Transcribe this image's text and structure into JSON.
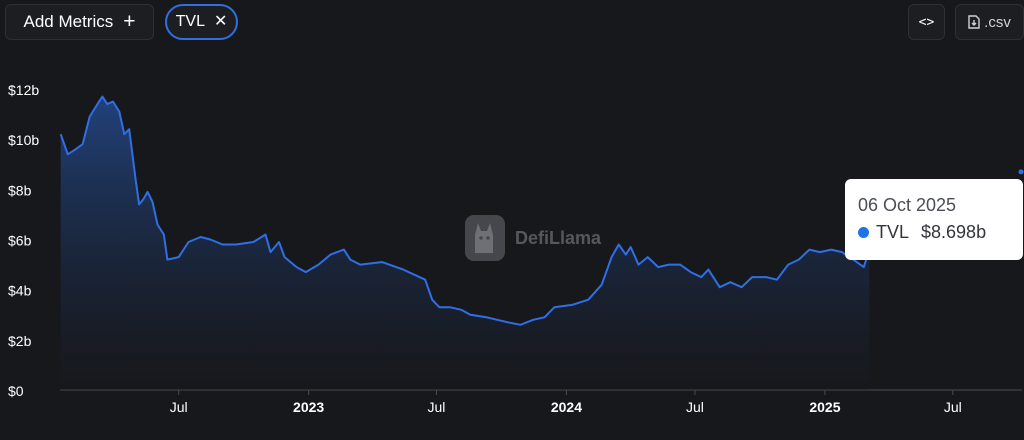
{
  "toolbar": {
    "add_metrics_label": "Add Metrics",
    "add_icon_glyph": "+",
    "metric_pill_label": "TVL",
    "remove_icon_glyph": "✕",
    "embed_icon_glyph": "<>",
    "csv_label": ".csv",
    "icons": [
      "plus-icon",
      "close-icon",
      "code-icon",
      "file-download-icon"
    ]
  },
  "watermark": {
    "text": "DefiLlama"
  },
  "tooltip": {
    "date": "06 Oct 2025",
    "series": "TVL",
    "value": "$8.698b",
    "dot_color": "#2172e5"
  },
  "chart_data": {
    "type": "area",
    "series": [
      {
        "name": "TVL",
        "color": "#2f6fe6",
        "points": [
          [
            "2022-01-15",
            10.2
          ],
          [
            "2022-01-25",
            9.4
          ],
          [
            "2022-02-05",
            9.6
          ],
          [
            "2022-02-15",
            9.8
          ],
          [
            "2022-02-25",
            10.9
          ],
          [
            "2022-03-08",
            11.4
          ],
          [
            "2022-03-15",
            11.7
          ],
          [
            "2022-03-22",
            11.4
          ],
          [
            "2022-03-30",
            11.5
          ],
          [
            "2022-04-08",
            11.1
          ],
          [
            "2022-04-15",
            10.2
          ],
          [
            "2022-04-22",
            10.4
          ],
          [
            "2022-05-01",
            8.4
          ],
          [
            "2022-05-06",
            7.4
          ],
          [
            "2022-05-12",
            7.6
          ],
          [
            "2022-05-18",
            7.9
          ],
          [
            "2022-05-25",
            7.5
          ],
          [
            "2022-06-01",
            6.6
          ],
          [
            "2022-06-10",
            6.2
          ],
          [
            "2022-06-15",
            5.2
          ],
          [
            "2022-07-01",
            5.3
          ],
          [
            "2022-07-15",
            5.9
          ],
          [
            "2022-08-01",
            6.1
          ],
          [
            "2022-08-15",
            6.0
          ],
          [
            "2022-09-01",
            5.8
          ],
          [
            "2022-09-20",
            5.8
          ],
          [
            "2022-10-15",
            5.9
          ],
          [
            "2022-11-01",
            6.2
          ],
          [
            "2022-11-08",
            5.5
          ],
          [
            "2022-11-20",
            5.9
          ],
          [
            "2022-11-28",
            5.3
          ],
          [
            "2022-12-15",
            4.9
          ],
          [
            "2022-12-28",
            4.7
          ],
          [
            "2023-01-15",
            5.0
          ],
          [
            "2023-02-01",
            5.4
          ],
          [
            "2023-02-20",
            5.6
          ],
          [
            "2023-03-01",
            5.2
          ],
          [
            "2023-03-15",
            5.0
          ],
          [
            "2023-04-15",
            5.1
          ],
          [
            "2023-05-15",
            4.8
          ],
          [
            "2023-06-15",
            4.4
          ],
          [
            "2023-06-25",
            3.6
          ],
          [
            "2023-07-05",
            3.3
          ],
          [
            "2023-07-20",
            3.3
          ],
          [
            "2023-08-05",
            3.2
          ],
          [
            "2023-08-18",
            3.0
          ],
          [
            "2023-09-10",
            2.9
          ],
          [
            "2023-10-10",
            2.7
          ],
          [
            "2023-10-28",
            2.6
          ],
          [
            "2023-11-15",
            2.8
          ],
          [
            "2023-12-01",
            2.9
          ],
          [
            "2023-12-15",
            3.3
          ],
          [
            "2024-01-10",
            3.4
          ],
          [
            "2024-02-01",
            3.6
          ],
          [
            "2024-02-20",
            4.2
          ],
          [
            "2024-03-05",
            5.3
          ],
          [
            "2024-03-15",
            5.8
          ],
          [
            "2024-03-25",
            5.4
          ],
          [
            "2024-04-01",
            5.7
          ],
          [
            "2024-04-12",
            5.0
          ],
          [
            "2024-04-25",
            5.3
          ],
          [
            "2024-05-10",
            4.9
          ],
          [
            "2024-05-25",
            5.0
          ],
          [
            "2024-06-10",
            5.0
          ],
          [
            "2024-06-25",
            4.7
          ],
          [
            "2024-07-10",
            4.5
          ],
          [
            "2024-07-20",
            4.8
          ],
          [
            "2024-08-05",
            4.1
          ],
          [
            "2024-08-20",
            4.3
          ],
          [
            "2024-09-05",
            4.1
          ],
          [
            "2024-09-20",
            4.5
          ],
          [
            "2024-10-10",
            4.5
          ],
          [
            "2024-10-25",
            4.4
          ],
          [
            "2024-11-10",
            5.0
          ],
          [
            "2024-11-25",
            5.2
          ],
          [
            "2024-12-10",
            5.6
          ],
          [
            "2024-12-25",
            5.5
          ],
          [
            "2025-01-10",
            5.6
          ],
          [
            "2025-01-25",
            5.5
          ],
          [
            "2025-02-10",
            5.2
          ],
          [
            "2025-02-25",
            4.9
          ],
          [
            "2025-03-05",
            5.6
          ]
        ]
      }
    ],
    "tooltip_point": [
      "2025-10-06",
      8.698
    ],
    "y_ticks": [
      "$0",
      "$2b",
      "$4b",
      "$6b",
      "$8b",
      "$10b",
      "$12b"
    ],
    "y_tick_values": [
      0,
      2,
      4,
      6,
      8,
      10,
      12
    ],
    "x_ticks": [
      {
        "label": "Jul",
        "date": "2022-07-01",
        "bold": false
      },
      {
        "label": "2023",
        "date": "2023-01-01",
        "bold": true
      },
      {
        "label": "Jul",
        "date": "2023-07-01",
        "bold": false
      },
      {
        "label": "2024",
        "date": "2024-01-01",
        "bold": true
      },
      {
        "label": "Jul",
        "date": "2024-07-01",
        "bold": false
      },
      {
        "label": "2025",
        "date": "2025-01-01",
        "bold": true
      },
      {
        "label": "Jul",
        "date": "2025-07-01",
        "bold": false
      }
    ],
    "ylim": [
      0,
      12.8
    ],
    "xlim": [
      "2022-01-14",
      "2025-10-07"
    ],
    "grid": false,
    "legend": "none"
  }
}
